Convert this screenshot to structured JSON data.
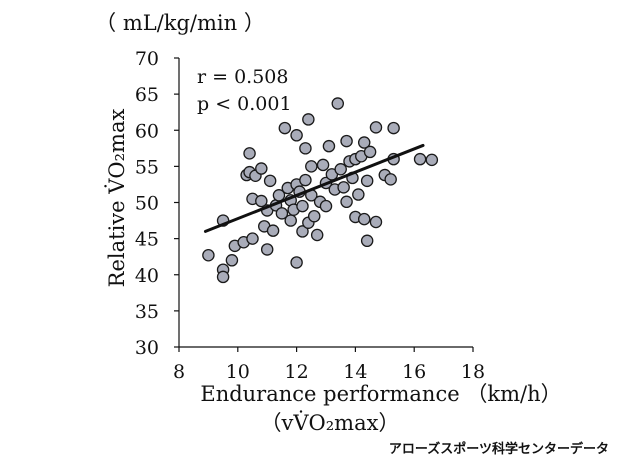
{
  "chart_data": {
    "type": "scatter",
    "title": "",
    "y_unit": "（ mL/kg/min ）",
    "ylabel": "Relative V̇O₂max",
    "xlabel": "Endurance performance",
    "x_unit": "（km/h）",
    "xlabel_sub": "（vV̇O₂max）",
    "xlim": [
      8,
      18
    ],
    "ylim": [
      30,
      70
    ],
    "x_ticks": [
      "8",
      "10",
      "12",
      "14",
      "16",
      "18"
    ],
    "y_ticks": [
      "30",
      "35",
      "40",
      "45",
      "50",
      "55",
      "60",
      "65",
      "70"
    ],
    "annotations": [
      "r = 0.508",
      "p < 0.001"
    ],
    "trendline": {
      "x": [
        8.9,
        16.3
      ],
      "y": [
        46.0,
        57.9
      ]
    },
    "marker_color": "#a9acb9",
    "marker_edge": "#1a1a1a",
    "line_color": "#111111",
    "points": [
      {
        "x": 9.0,
        "y": 42.7
      },
      {
        "x": 9.5,
        "y": 40.7
      },
      {
        "x": 9.5,
        "y": 39.7
      },
      {
        "x": 9.5,
        "y": 47.5
      },
      {
        "x": 9.8,
        "y": 42.0
      },
      {
        "x": 9.9,
        "y": 44.0
      },
      {
        "x": 10.2,
        "y": 44.5
      },
      {
        "x": 10.3,
        "y": 53.8
      },
      {
        "x": 10.4,
        "y": 56.8
      },
      {
        "x": 10.4,
        "y": 54.2
      },
      {
        "x": 10.5,
        "y": 50.5
      },
      {
        "x": 10.5,
        "y": 45.0
      },
      {
        "x": 10.6,
        "y": 53.7
      },
      {
        "x": 10.8,
        "y": 54.7
      },
      {
        "x": 10.8,
        "y": 50.2
      },
      {
        "x": 10.9,
        "y": 46.7
      },
      {
        "x": 11.0,
        "y": 43.5
      },
      {
        "x": 11.0,
        "y": 48.9
      },
      {
        "x": 11.1,
        "y": 53.0
      },
      {
        "x": 11.2,
        "y": 46.1
      },
      {
        "x": 11.3,
        "y": 49.6
      },
      {
        "x": 11.4,
        "y": 51.0
      },
      {
        "x": 11.5,
        "y": 48.5
      },
      {
        "x": 11.6,
        "y": 60.3
      },
      {
        "x": 11.7,
        "y": 52.0
      },
      {
        "x": 11.8,
        "y": 47.5
      },
      {
        "x": 11.8,
        "y": 50.3
      },
      {
        "x": 11.9,
        "y": 49.0
      },
      {
        "x": 12.0,
        "y": 59.3
      },
      {
        "x": 12.0,
        "y": 52.5
      },
      {
        "x": 12.0,
        "y": 41.7
      },
      {
        "x": 12.1,
        "y": 51.5
      },
      {
        "x": 12.2,
        "y": 46.0
      },
      {
        "x": 12.2,
        "y": 49.5
      },
      {
        "x": 12.3,
        "y": 53.1
      },
      {
        "x": 12.3,
        "y": 57.5
      },
      {
        "x": 12.4,
        "y": 61.5
      },
      {
        "x": 12.4,
        "y": 47.2
      },
      {
        "x": 12.5,
        "y": 55.0
      },
      {
        "x": 12.5,
        "y": 51.0
      },
      {
        "x": 12.6,
        "y": 48.1
      },
      {
        "x": 12.7,
        "y": 45.5
      },
      {
        "x": 12.8,
        "y": 50.1
      },
      {
        "x": 12.9,
        "y": 55.2
      },
      {
        "x": 13.0,
        "y": 52.7
      },
      {
        "x": 13.0,
        "y": 49.5
      },
      {
        "x": 13.1,
        "y": 57.8
      },
      {
        "x": 13.2,
        "y": 53.9
      },
      {
        "x": 13.3,
        "y": 51.8
      },
      {
        "x": 13.4,
        "y": 63.7
      },
      {
        "x": 13.5,
        "y": 54.6
      },
      {
        "x": 13.6,
        "y": 52.1
      },
      {
        "x": 13.7,
        "y": 58.5
      },
      {
        "x": 13.7,
        "y": 50.1
      },
      {
        "x": 13.8,
        "y": 55.7
      },
      {
        "x": 13.9,
        "y": 53.4
      },
      {
        "x": 14.0,
        "y": 56.0
      },
      {
        "x": 14.0,
        "y": 48.0
      },
      {
        "x": 14.1,
        "y": 51.1
      },
      {
        "x": 14.2,
        "y": 56.4
      },
      {
        "x": 14.3,
        "y": 47.7
      },
      {
        "x": 14.3,
        "y": 58.3
      },
      {
        "x": 14.4,
        "y": 53.0
      },
      {
        "x": 14.4,
        "y": 44.7
      },
      {
        "x": 14.5,
        "y": 57.0
      },
      {
        "x": 14.7,
        "y": 60.4
      },
      {
        "x": 14.7,
        "y": 47.3
      },
      {
        "x": 15.0,
        "y": 53.8
      },
      {
        "x": 15.2,
        "y": 53.2
      },
      {
        "x": 15.3,
        "y": 60.3
      },
      {
        "x": 15.3,
        "y": 56.0
      },
      {
        "x": 16.2,
        "y": 56.0
      },
      {
        "x": 16.6,
        "y": 55.9
      }
    ]
  },
  "footer": {
    "credit": "アローズスポーツ科学センターデータ"
  }
}
